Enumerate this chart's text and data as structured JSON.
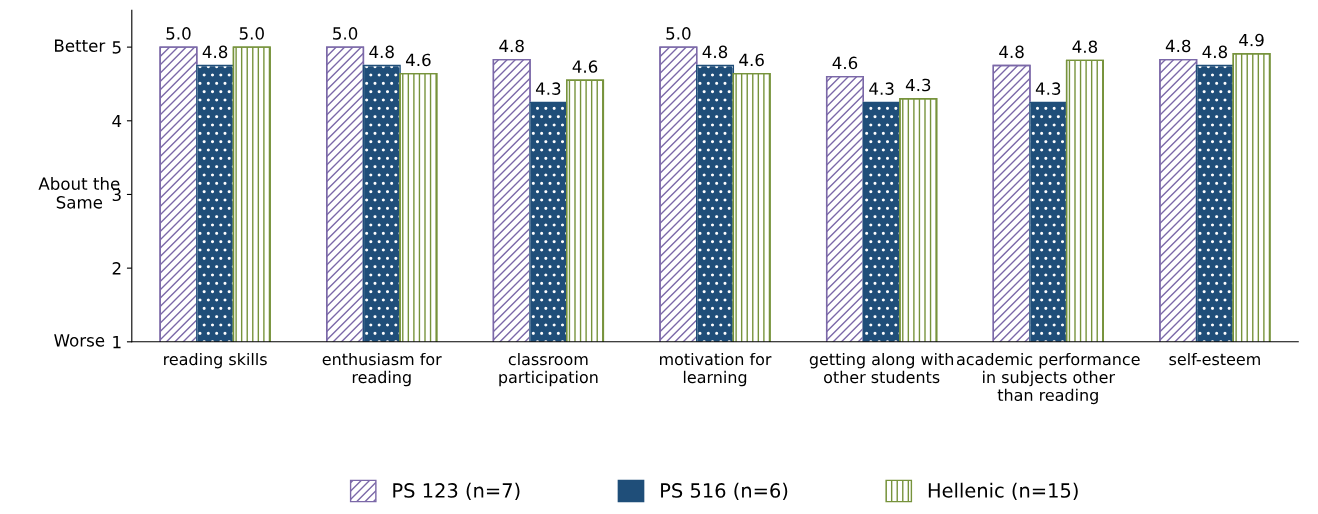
{
  "chart_data": {
    "type": "bar",
    "categories": [
      "reading skills",
      "enthusiasm for reading",
      "classroom participation",
      "motivation for learning",
      "getting along with other students",
      "academic performance in subjects other than reading",
      "self-esteem"
    ],
    "series": [
      {
        "name": "PS 123 (n=7)",
        "color": "#7b68a8",
        "values": [
          5.0,
          5.0,
          4.83,
          5.0,
          4.6,
          4.75,
          4.83
        ],
        "value_labels": [
          "5.0",
          "5.0",
          "4.8",
          "5.0",
          "4.6",
          "4.8",
          "4.8"
        ]
      },
      {
        "name": "PS 516 (n=6)",
        "color": "#1f4e79",
        "values": [
          4.75,
          4.75,
          4.25,
          4.75,
          4.25,
          4.25,
          4.75
        ],
        "value_labels": [
          "4.8",
          "4.8",
          "4.3",
          "4.8",
          "4.3",
          "4.3",
          "4.8"
        ]
      },
      {
        "name": "Hellenic (n=15)",
        "color": "#77933c",
        "values": [
          5.0,
          4.64,
          4.55,
          4.64,
          4.3,
          4.82,
          4.91
        ],
        "value_labels": [
          "5.0",
          "4.6",
          "4.6",
          "4.6",
          "4.3",
          "4.8",
          "4.9"
        ]
      }
    ],
    "ylim": [
      1,
      5.5
    ],
    "yticks": [
      1,
      2,
      3,
      4,
      5
    ],
    "annotations": [
      "Better",
      "About the\nSame",
      "Worse"
    ],
    "grid": false,
    "legend": "bottom"
  }
}
